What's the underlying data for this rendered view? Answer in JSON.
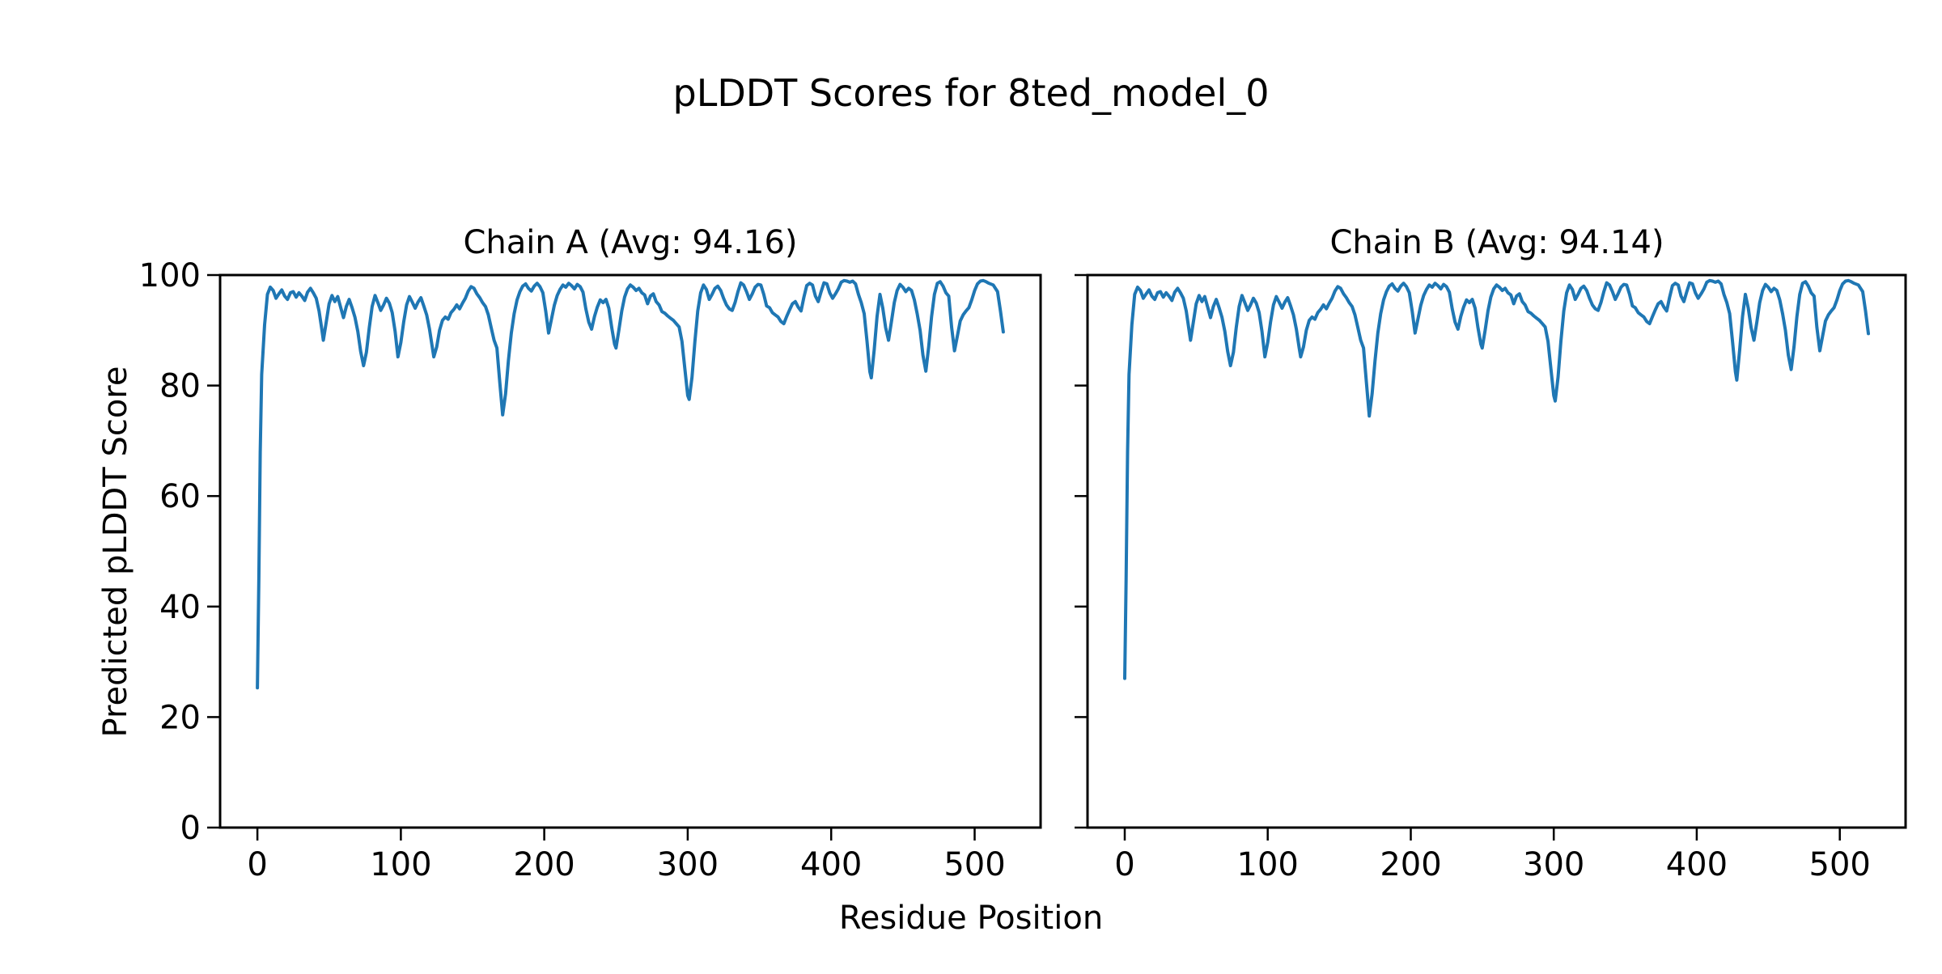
{
  "figure": {
    "suptitle": "pLDDT Scores for 8ted_model_0"
  },
  "chart_data": {
    "type": "line",
    "title": "pLDDT Scores for 8ted_model_0",
    "xlabel": "Residue Position",
    "ylabel": "Predicted pLDDT Score",
    "line_color": "#1f77b4",
    "background": "#ffffff",
    "grid": false,
    "legend_position": "none",
    "xlim": [
      -26,
      546
    ],
    "ylim": [
      0,
      100
    ],
    "xticks": [
      0,
      100,
      200,
      300,
      400,
      500
    ],
    "yticks": [
      0,
      20,
      40,
      60,
      80,
      100
    ],
    "subplots": [
      {
        "name": "Chain A",
        "title": "Chain A (Avg: 94.16)",
        "avg": 94.16,
        "x": [
          0,
          1,
          2,
          3,
          5,
          7,
          9,
          11,
          13,
          15,
          17,
          19,
          21,
          23,
          25,
          27,
          29,
          31,
          33,
          35,
          37,
          39,
          41,
          43,
          45,
          46,
          48,
          50,
          52,
          54,
          56,
          58,
          60,
          62,
          64,
          66,
          68,
          70,
          72,
          74,
          76,
          78,
          80,
          82,
          84,
          86,
          88,
          90,
          92,
          94,
          96,
          98,
          100,
          102,
          104,
          106,
          108,
          110,
          112,
          114,
          116,
          118,
          120,
          122,
          123,
          125,
          127,
          129,
          131,
          133,
          135,
          137,
          139,
          141,
          143,
          145,
          147,
          149,
          151,
          153,
          155,
          157,
          159,
          161,
          163,
          165,
          167,
          169,
          171,
          173,
          175,
          177,
          179,
          181,
          183,
          185,
          187,
          189,
          191,
          193,
          195,
          197,
          199,
          201,
          203,
          205,
          207,
          209,
          211,
          213,
          215,
          217,
          219,
          221,
          223,
          225,
          227,
          229,
          231,
          233,
          235,
          237,
          239,
          241,
          243,
          245,
          247,
          249,
          250,
          252,
          254,
          256,
          258,
          260,
          262,
          264,
          266,
          268,
          270,
          272,
          274,
          276,
          278,
          280,
          282,
          284,
          286,
          288,
          290,
          292,
          294,
          296,
          298,
          300,
          301,
          303,
          305,
          307,
          309,
          311,
          313,
          315,
          317,
          319,
          321,
          323,
          325,
          327,
          329,
          331,
          333,
          335,
          337,
          339,
          341,
          343,
          345,
          347,
          349,
          351,
          353,
          355,
          357,
          359,
          361,
          363,
          365,
          367,
          369,
          371,
          373,
          375,
          377,
          379,
          381,
          383,
          385,
          387,
          389,
          391,
          393,
          395,
          397,
          399,
          401,
          403,
          405,
          407,
          409,
          411,
          413,
          415,
          417,
          419,
          421,
          423,
          425,
          427,
          428,
          430,
          432,
          434,
          436,
          438,
          440,
          442,
          444,
          446,
          448,
          450,
          452,
          454,
          456,
          458,
          460,
          462,
          464,
          466,
          468,
          470,
          472,
          474,
          476,
          478,
          480,
          482,
          484,
          486,
          488,
          490,
          492,
          494,
          496,
          498,
          500,
          502,
          504,
          506,
          508,
          510,
          513,
          516,
          518,
          520
        ],
        "y": [
          25.3,
          45,
          68,
          82,
          91,
          96.5,
          97.8,
          97.2,
          95.8,
          96.6,
          97.3,
          96.2,
          95.6,
          96.8,
          97.0,
          96.0,
          96.8,
          96.2,
          95.4,
          96.9,
          97.6,
          96.8,
          95.8,
          93.5,
          90.0,
          88.2,
          91.5,
          94.8,
          96.3,
          95.2,
          96.1,
          94.2,
          92.3,
          94.3,
          95.6,
          94.1,
          92.4,
          89.8,
          86.2,
          83.6,
          86.0,
          90.5,
          94.3,
          96.3,
          95.0,
          93.6,
          94.6,
          95.8,
          94.9,
          93.2,
          89.8,
          85.2,
          87.8,
          91.5,
          94.6,
          96.1,
          95.1,
          94.0,
          95.1,
          95.9,
          94.4,
          92.8,
          90.2,
          86.8,
          85.2,
          87.0,
          90.0,
          91.8,
          92.4,
          92.0,
          93.2,
          93.8,
          94.6,
          93.9,
          94.9,
          95.8,
          97.1,
          97.9,
          97.6,
          96.6,
          95.9,
          95.0,
          94.3,
          92.8,
          90.5,
          88.2,
          86.8,
          80.5,
          74.7,
          78.5,
          84.5,
          89.5,
          93.0,
          95.5,
          97.0,
          98.0,
          98.4,
          97.6,
          97.1,
          98.0,
          98.5,
          97.9,
          96.8,
          93.5,
          89.5,
          92.0,
          94.5,
          96.3,
          97.4,
          98.2,
          97.8,
          98.5,
          98.1,
          97.5,
          98.3,
          97.9,
          96.9,
          93.9,
          91.5,
          90.2,
          92.5,
          94.2,
          95.5,
          95.0,
          95.6,
          94.0,
          90.5,
          87.5,
          86.8,
          90.0,
          93.5,
          96.0,
          97.5,
          98.2,
          97.8,
          97.2,
          97.6,
          96.8,
          96.4,
          94.8,
          96.2,
          96.6,
          95.2,
          94.6,
          93.4,
          93.1,
          92.6,
          92.2,
          91.8,
          91.2,
          90.6,
          88.0,
          83.0,
          78.2,
          77.5,
          81.5,
          88.0,
          93.5,
          96.8,
          98.2,
          97.4,
          95.6,
          96.5,
          97.6,
          98.0,
          97.2,
          95.8,
          94.6,
          93.9,
          93.6,
          95.0,
          97.0,
          98.6,
          98.2,
          97.0,
          95.6,
          96.6,
          97.8,
          98.3,
          98.2,
          96.5,
          94.4,
          94.1,
          93.2,
          92.8,
          92.4,
          91.6,
          91.2,
          92.5,
          93.7,
          94.8,
          95.2,
          94.2,
          93.5,
          96.0,
          98.1,
          98.5,
          98.2,
          96.2,
          95.2,
          97.0,
          98.6,
          98.4,
          96.8,
          95.8,
          96.6,
          97.5,
          98.7,
          99.0,
          98.9,
          98.7,
          98.9,
          98.4,
          96.5,
          95.0,
          93.0,
          88.0,
          82.5,
          81.4,
          86.5,
          92.5,
          96.5,
          94.0,
          90.5,
          88.2,
          91.5,
          95.0,
          97.2,
          98.3,
          97.8,
          97.0,
          97.6,
          97.2,
          95.5,
          93.0,
          90.0,
          85.5,
          82.6,
          87.0,
          92.5,
          96.5,
          98.5,
          98.8,
          98.0,
          96.8,
          96.2,
          90.5,
          86.3,
          89.0,
          91.7,
          92.8,
          93.5,
          94.1,
          95.5,
          97.2,
          98.4,
          98.9,
          99.0,
          98.8,
          98.5,
          98.2,
          97.0,
          93.5,
          89.7
        ]
      },
      {
        "name": "Chain B",
        "title": "Chain B (Avg: 94.14)",
        "avg": 94.14,
        "x": [
          0,
          1,
          2,
          3,
          5,
          7,
          9,
          11,
          13,
          15,
          17,
          19,
          21,
          23,
          25,
          27,
          29,
          31,
          33,
          35,
          37,
          39,
          41,
          43,
          45,
          46,
          48,
          50,
          52,
          54,
          56,
          58,
          60,
          62,
          64,
          66,
          68,
          70,
          72,
          74,
          76,
          78,
          80,
          82,
          84,
          86,
          88,
          90,
          92,
          94,
          96,
          98,
          100,
          102,
          104,
          106,
          108,
          110,
          112,
          114,
          116,
          118,
          120,
          122,
          123,
          125,
          127,
          129,
          131,
          133,
          135,
          137,
          139,
          141,
          143,
          145,
          147,
          149,
          151,
          153,
          155,
          157,
          159,
          161,
          163,
          165,
          167,
          169,
          171,
          173,
          175,
          177,
          179,
          181,
          183,
          185,
          187,
          189,
          191,
          193,
          195,
          197,
          199,
          201,
          203,
          205,
          207,
          209,
          211,
          213,
          215,
          217,
          219,
          221,
          223,
          225,
          227,
          229,
          231,
          233,
          235,
          237,
          239,
          241,
          243,
          245,
          247,
          249,
          250,
          252,
          254,
          256,
          258,
          260,
          262,
          264,
          266,
          268,
          270,
          272,
          274,
          276,
          278,
          280,
          282,
          284,
          286,
          288,
          290,
          292,
          294,
          296,
          298,
          300,
          301,
          303,
          305,
          307,
          309,
          311,
          313,
          315,
          317,
          319,
          321,
          323,
          325,
          327,
          329,
          331,
          333,
          335,
          337,
          339,
          341,
          343,
          345,
          347,
          349,
          351,
          353,
          355,
          357,
          359,
          361,
          363,
          365,
          367,
          369,
          371,
          373,
          375,
          377,
          379,
          381,
          383,
          385,
          387,
          389,
          391,
          393,
          395,
          397,
          399,
          401,
          403,
          405,
          407,
          409,
          411,
          413,
          415,
          417,
          419,
          421,
          423,
          425,
          427,
          428,
          430,
          432,
          434,
          436,
          438,
          440,
          442,
          444,
          446,
          448,
          450,
          452,
          454,
          456,
          458,
          460,
          462,
          464,
          466,
          468,
          470,
          472,
          474,
          476,
          478,
          480,
          482,
          484,
          486,
          488,
          490,
          492,
          494,
          496,
          498,
          500,
          502,
          504,
          506,
          508,
          510,
          513,
          516,
          518,
          520
        ],
        "y": [
          27.0,
          45,
          68,
          82,
          91,
          96.5,
          97.8,
          97.2,
          95.8,
          96.6,
          97.3,
          96.2,
          95.6,
          96.8,
          97.0,
          96.0,
          96.8,
          96.2,
          95.4,
          96.9,
          97.6,
          96.8,
          95.8,
          93.5,
          90.0,
          88.2,
          91.5,
          94.8,
          96.3,
          95.2,
          96.1,
          94.2,
          92.3,
          94.3,
          95.6,
          94.1,
          92.4,
          89.8,
          86.2,
          83.6,
          86.0,
          90.5,
          94.3,
          96.3,
          95.0,
          93.6,
          94.6,
          95.8,
          94.9,
          93.2,
          89.8,
          85.2,
          87.8,
          91.5,
          94.6,
          96.1,
          95.1,
          94.0,
          95.1,
          95.9,
          94.4,
          92.8,
          90.2,
          86.8,
          85.2,
          87.0,
          90.0,
          91.8,
          92.4,
          92.0,
          93.2,
          93.8,
          94.6,
          93.9,
          94.9,
          95.8,
          97.1,
          97.9,
          97.6,
          96.6,
          95.9,
          95.0,
          94.3,
          92.8,
          90.5,
          88.2,
          86.8,
          80.5,
          74.5,
          78.5,
          84.5,
          89.5,
          93.0,
          95.5,
          97.0,
          98.0,
          98.4,
          97.6,
          97.1,
          98.0,
          98.5,
          97.9,
          96.8,
          93.5,
          89.5,
          92.0,
          94.5,
          96.3,
          97.4,
          98.2,
          97.8,
          98.5,
          98.1,
          97.5,
          98.3,
          97.9,
          96.9,
          93.9,
          91.5,
          90.2,
          92.5,
          94.2,
          95.5,
          95.0,
          95.6,
          94.0,
          90.5,
          87.5,
          86.8,
          90.0,
          93.5,
          96.0,
          97.5,
          98.2,
          97.8,
          97.2,
          97.6,
          96.8,
          96.4,
          94.8,
          96.2,
          96.6,
          95.2,
          94.6,
          93.4,
          93.1,
          92.6,
          92.2,
          91.8,
          91.2,
          90.6,
          88.0,
          83.0,
          78.2,
          77.2,
          81.5,
          88.0,
          93.5,
          96.8,
          98.2,
          97.4,
          95.6,
          96.5,
          97.6,
          98.0,
          97.2,
          95.8,
          94.6,
          93.9,
          93.6,
          95.0,
          97.0,
          98.6,
          98.2,
          97.0,
          95.6,
          96.6,
          97.8,
          98.3,
          98.2,
          96.5,
          94.4,
          94.1,
          93.2,
          92.8,
          92.4,
          91.6,
          91.2,
          92.5,
          93.7,
          94.8,
          95.2,
          94.2,
          93.5,
          96.0,
          98.1,
          98.5,
          98.2,
          96.2,
          95.2,
          97.0,
          98.6,
          98.4,
          96.8,
          95.8,
          96.6,
          97.5,
          98.7,
          99.0,
          98.9,
          98.7,
          98.9,
          98.4,
          96.5,
          95.0,
          93.0,
          88.0,
          82.5,
          81.0,
          86.5,
          92.5,
          96.5,
          94.0,
          90.5,
          88.2,
          91.5,
          95.0,
          97.2,
          98.3,
          97.8,
          97.0,
          97.6,
          97.2,
          95.5,
          93.0,
          90.0,
          85.5,
          82.9,
          87.0,
          92.5,
          96.5,
          98.5,
          98.8,
          98.0,
          96.8,
          96.2,
          90.5,
          86.3,
          89.0,
          91.7,
          92.8,
          93.5,
          94.1,
          95.5,
          97.2,
          98.4,
          98.9,
          99.0,
          98.8,
          98.5,
          98.2,
          97.0,
          93.5,
          89.4
        ]
      }
    ]
  }
}
